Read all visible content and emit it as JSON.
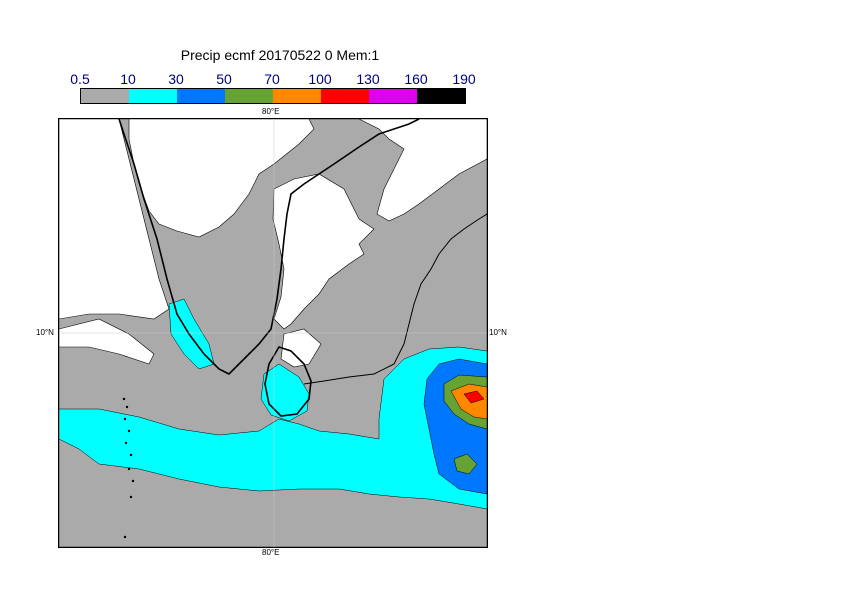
{
  "title": "Precip ecmf 20170522 0 Mem:1",
  "legend": {
    "levels": [
      "0.5",
      "10",
      "30",
      "50",
      "70",
      "100",
      "130",
      "160",
      "190"
    ],
    "colors": [
      "#aaaaaa",
      "#00ffff",
      "#0077ff",
      "#66a333",
      "#ff8800",
      "#ff0000",
      "#dd00ee",
      "#000000"
    ]
  },
  "axes": {
    "lon_top": "80°E",
    "lon_bottom": "80°E",
    "lat_left": "10°N",
    "lat_right": "10°N"
  },
  "map_colors": {
    "land": "#ffffff",
    "background": "#ffffff",
    "coast": "#000000"
  }
}
